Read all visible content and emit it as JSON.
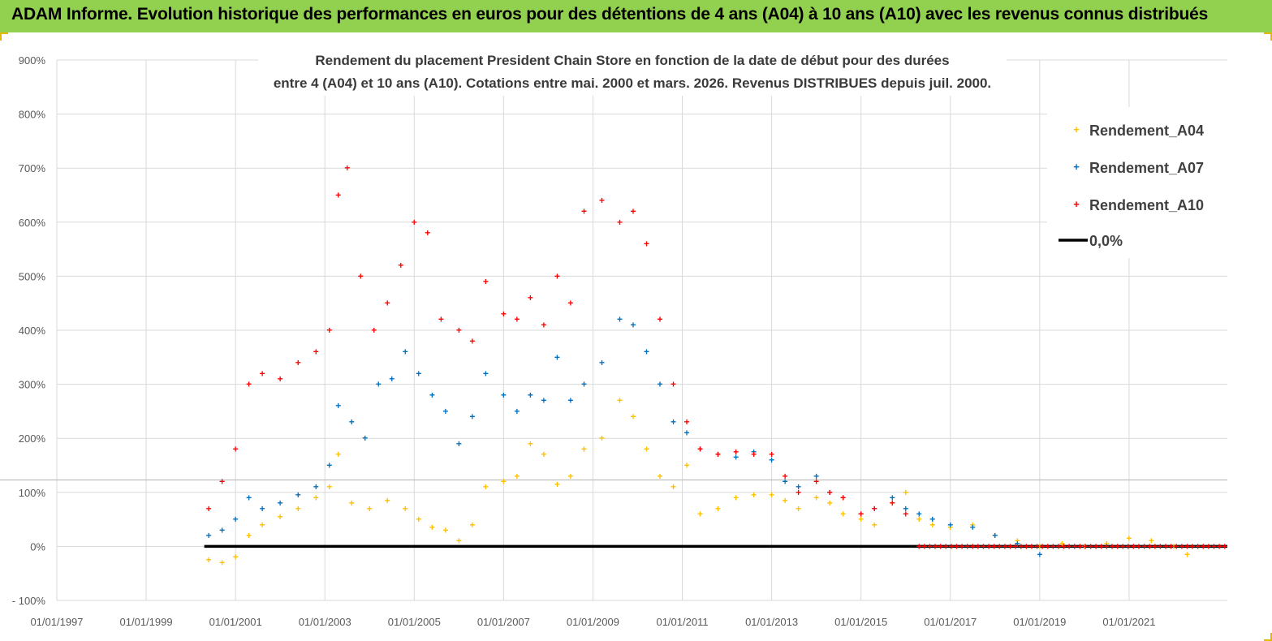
{
  "header": {
    "title": "ADAM Informe. Evolution historique des performances en euros pour des détentions de 4 ans (A04) à 10 ans (A10) avec les revenus connus distribués"
  },
  "colors": {
    "banner": "#92d050",
    "A04": "#ffc000",
    "A07": "#0070c0",
    "A10": "#ff0000",
    "zero": "#000000",
    "grid": "#d9d9d9"
  },
  "chart_data": {
    "type": "scatter",
    "title_lines": [
      "Rendement du placement President Chain Store  en fonction de la date de début pour des durées",
      "entre 4 (A04) et 10 ans (A10). Cotations entre mai. 2000 et mars. 2026. Revenus DISTRIBUES depuis juil. 2000."
    ],
    "y_ticks": [
      "900%",
      "800%",
      "700%",
      "600%",
      "500%",
      "400%",
      "300%",
      "200%",
      "100%",
      "0%",
      "- 100%"
    ],
    "ylim": [
      -100,
      900
    ],
    "x_ticks": [
      "01/01/1997",
      "01/01/1999",
      "01/01/2001",
      "01/01/2003",
      "01/01/2005",
      "01/01/2007",
      "01/01/2009",
      "01/01/2011",
      "01/01/2013",
      "01/01/2015",
      "01/01/2017",
      "01/01/2019",
      "01/01/2021"
    ],
    "xlim": [
      1997.0,
      2023.2
    ],
    "legend": [
      "Rendement_A04",
      "Rendement_A07",
      "Rendement_A10",
      "0,0%"
    ],
    "reference_line_y": 123,
    "series": [
      {
        "name": "Rendement_A04",
        "x": [
          2000.4,
          2000.7,
          2001.0,
          2001.3,
          2001.6,
          2002.0,
          2002.4,
          2002.8,
          2003.1,
          2003.3,
          2003.6,
          2004.0,
          2004.4,
          2004.8,
          2005.1,
          2005.4,
          2005.7,
          2006.0,
          2006.3,
          2006.6,
          2007.0,
          2007.3,
          2007.6,
          2007.9,
          2008.2,
          2008.5,
          2008.8,
          2009.2,
          2009.6,
          2009.9,
          2010.2,
          2010.5,
          2010.8,
          2011.1,
          2011.4,
          2011.8,
          2012.2,
          2012.6,
          2013.0,
          2013.3,
          2013.6,
          2014.0,
          2014.3,
          2014.6,
          2015.0,
          2015.3,
          2015.7,
          2016.0,
          2016.3,
          2016.6,
          2017.0,
          2017.5,
          2018.0,
          2018.5,
          2019.0,
          2019.5,
          2020.0,
          2020.5,
          2021.0,
          2021.5,
          2022.0,
          2022.3
        ],
        "y": [
          -25,
          -30,
          -20,
          20,
          40,
          55,
          70,
          90,
          110,
          170,
          80,
          70,
          85,
          70,
          50,
          35,
          30,
          10,
          40,
          110,
          120,
          130,
          190,
          170,
          115,
          130,
          180,
          200,
          270,
          240,
          180,
          130,
          110,
          150,
          60,
          70,
          90,
          95,
          95,
          85,
          70,
          90,
          80,
          60,
          50,
          40,
          80,
          100,
          50,
          40,
          35,
          40,
          20,
          10,
          0,
          5,
          0,
          5,
          15,
          10,
          0,
          -15
        ]
      },
      {
        "name": "Rendement_A07",
        "x": [
          2000.4,
          2000.7,
          2001.0,
          2001.3,
          2001.6,
          2002.0,
          2002.4,
          2002.8,
          2003.1,
          2003.3,
          2003.6,
          2003.9,
          2004.2,
          2004.5,
          2004.8,
          2005.1,
          2005.4,
          2005.7,
          2006.0,
          2006.3,
          2006.6,
          2007.0,
          2007.3,
          2007.6,
          2007.9,
          2008.2,
          2008.5,
          2008.8,
          2009.2,
          2009.6,
          2009.9,
          2010.2,
          2010.5,
          2010.8,
          2011.1,
          2011.4,
          2011.8,
          2012.2,
          2012.6,
          2013.0,
          2013.3,
          2013.6,
          2014.0,
          2014.3,
          2014.6,
          2015.0,
          2015.3,
          2015.7,
          2016.0,
          2016.3,
          2016.6,
          2017.0,
          2017.5,
          2018.0,
          2018.5,
          2019.0
        ],
        "y": [
          20,
          30,
          50,
          90,
          70,
          80,
          95,
          110,
          150,
          260,
          230,
          200,
          300,
          310,
          360,
          320,
          280,
          250,
          190,
          240,
          320,
          280,
          250,
          280,
          270,
          350,
          270,
          300,
          340,
          420,
          410,
          360,
          300,
          230,
          210,
          180,
          170,
          165,
          175,
          160,
          120,
          110,
          130,
          100,
          90,
          60,
          70,
          90,
          70,
          60,
          50,
          40,
          35,
          20,
          5,
          -15
        ]
      },
      {
        "name": "Rendement_A10",
        "x": [
          2000.4,
          2000.7,
          2001.0,
          2001.3,
          2001.6,
          2002.0,
          2002.4,
          2002.8,
          2003.1,
          2003.3,
          2003.5,
          2003.8,
          2004.1,
          2004.4,
          2004.7,
          2005.0,
          2005.3,
          2005.6,
          2006.0,
          2006.3,
          2006.6,
          2007.0,
          2007.3,
          2007.6,
          2007.9,
          2008.2,
          2008.5,
          2008.8,
          2009.2,
          2009.6,
          2009.9,
          2010.2,
          2010.5,
          2010.8,
          2011.1,
          2011.4,
          2011.8,
          2012.2,
          2012.6,
          2013.0,
          2013.3,
          2013.6,
          2014.0,
          2014.3,
          2014.6,
          2015.0,
          2015.3,
          2015.7,
          2016.0
        ],
        "y": [
          70,
          120,
          180,
          300,
          320,
          310,
          340,
          360,
          400,
          650,
          700,
          500,
          400,
          450,
          520,
          600,
          580,
          420,
          400,
          380,
          490,
          430,
          420,
          460,
          410,
          500,
          450,
          620,
          640,
          600,
          620,
          560,
          420,
          300,
          230,
          180,
          170,
          175,
          170,
          170,
          130,
          100,
          120,
          100,
          90,
          60,
          70,
          80,
          60
        ]
      },
      {
        "name": "0,0%",
        "x": [
          2000.3,
          2023.2
        ],
        "y": [
          0,
          0
        ]
      }
    ]
  }
}
